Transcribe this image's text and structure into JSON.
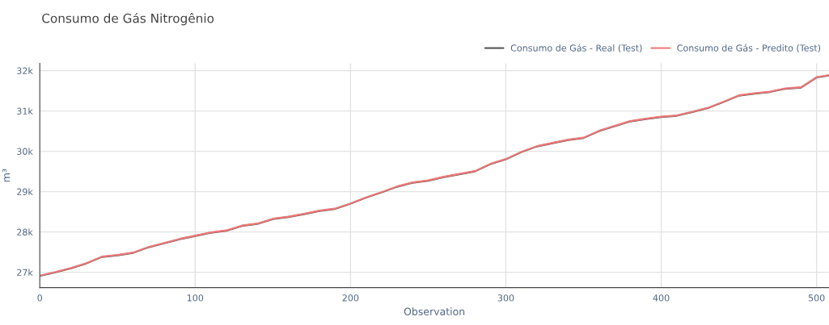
{
  "chart_data": {
    "type": "line",
    "title": "Consumo de Gás Nitrogênio",
    "xlabel": "Observation",
    "ylabel": "m³",
    "x": [
      0,
      10,
      20,
      30,
      40,
      50,
      60,
      70,
      80,
      90,
      100,
      110,
      120,
      130,
      140,
      150,
      160,
      170,
      180,
      190,
      200,
      210,
      220,
      230,
      240,
      250,
      260,
      270,
      280,
      290,
      300,
      310,
      320,
      330,
      340,
      350,
      360,
      370,
      380,
      390,
      400,
      410,
      420,
      430,
      440,
      450,
      460,
      470,
      480,
      490,
      500,
      508
    ],
    "series": [
      {
        "name": "Consumo de Gás - Real (Test)",
        "color": "#555555",
        "values": [
          26910,
          27000,
          27100,
          27220,
          27380,
          27420,
          27480,
          27620,
          27720,
          27820,
          27900,
          27980,
          28030,
          28150,
          28200,
          28320,
          28370,
          28440,
          28520,
          28570,
          28700,
          28850,
          28980,
          29120,
          29220,
          29270,
          29360,
          29430,
          29500,
          29680,
          29800,
          29980,
          30120,
          30200,
          30280,
          30330,
          30500,
          30620,
          30740,
          30800,
          30850,
          30880,
          30970,
          31070,
          31220,
          31380,
          31430,
          31470,
          31550,
          31580,
          31830,
          31880
        ]
      },
      {
        "name": "Consumo de Gás - Predito (Test)",
        "color": "#f07878",
        "values": [
          26920,
          27010,
          27110,
          27230,
          27390,
          27430,
          27490,
          27630,
          27730,
          27830,
          27910,
          27990,
          28040,
          28160,
          28210,
          28330,
          28380,
          28450,
          28530,
          28580,
          28710,
          28860,
          28990,
          29130,
          29230,
          29280,
          29370,
          29440,
          29510,
          29690,
          29810,
          29990,
          30130,
          30210,
          30290,
          30340,
          30510,
          30630,
          30750,
          30810,
          30860,
          30890,
          30980,
          31080,
          31230,
          31390,
          31440,
          31480,
          31560,
          31590,
          31840,
          31890
        ]
      }
    ],
    "xlim": [
      0,
      508
    ],
    "xticks": [
      0,
      100,
      200,
      300,
      400,
      500
    ],
    "ylim": [
      26620,
      32180
    ],
    "yticks": [
      {
        "value": 27000,
        "label": "27k"
      },
      {
        "value": 28000,
        "label": "28k"
      },
      {
        "value": 29000,
        "label": "29k"
      },
      {
        "value": 30000,
        "label": "30k"
      },
      {
        "value": 31000,
        "label": "31k"
      },
      {
        "value": 32000,
        "label": "32k"
      }
    ],
    "grid": true,
    "legend": "top right",
    "marker": "none",
    "line_style": "solid"
  }
}
